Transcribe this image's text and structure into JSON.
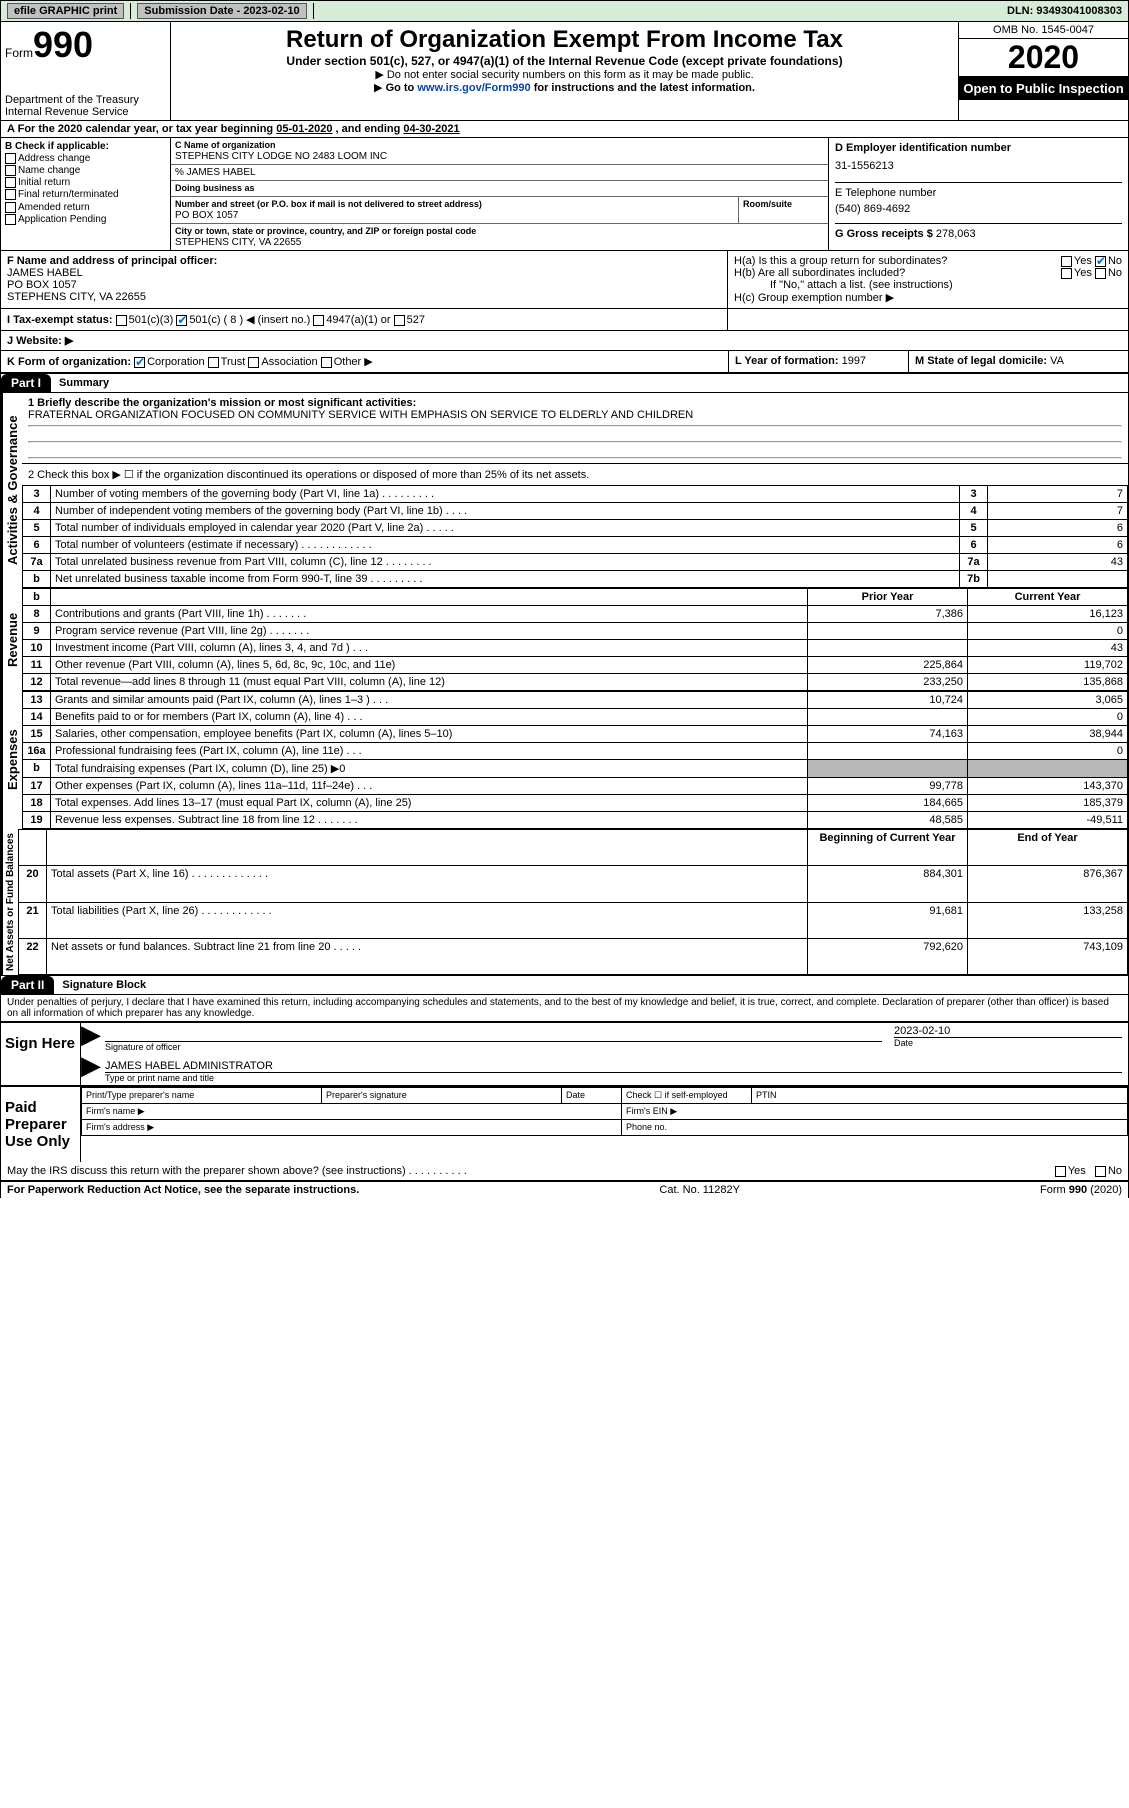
{
  "topbar": {
    "efile": "efile GRAPHIC print",
    "submission_label": "Submission Date - 2023-02-10",
    "dln": "DLN: 93493041008303"
  },
  "header": {
    "form_label": "Form",
    "form_number": "990",
    "dept1": "Department of the Treasury",
    "dept2": "Internal Revenue Service",
    "title": "Return of Organization Exempt From Income Tax",
    "subtitle": "Under section 501(c), 527, or 4947(a)(1) of the Internal Revenue Code (except private foundations)",
    "note1": "Do not enter social security numbers on this form as it may be made public.",
    "note2_pre": "Go to ",
    "note2_link": "www.irs.gov/Form990",
    "note2_post": " for instructions and the latest information.",
    "omb": "OMB No. 1545-0047",
    "year": "2020",
    "open": "Open to Public Inspection"
  },
  "period": {
    "text_pre": "For the 2020 calendar year, or tax year beginning ",
    "begin": "05-01-2020",
    "text_mid": " , and ending ",
    "end": "04-30-2021"
  },
  "secB": {
    "label": "B Check if applicable:",
    "items": [
      "Address change",
      "Name change",
      "Initial return",
      "Final return/terminated",
      "Amended return",
      "Application Pending"
    ]
  },
  "secC": {
    "name_label": "C Name of organization",
    "name": "STEPHENS CITY LODGE NO 2483 LOOM INC",
    "care_of": "% JAMES HABEL",
    "dba_label": "Doing business as",
    "street_label": "Number and street (or P.O. box if mail is not delivered to street address)",
    "room_label": "Room/suite",
    "street": "PO BOX 1057",
    "city_label": "City or town, state or province, country, and ZIP or foreign postal code",
    "city": "STEPHENS CITY, VA  22655"
  },
  "secD": {
    "label": "D Employer identification number",
    "value": "31-1556213"
  },
  "secE": {
    "label": "E Telephone number",
    "value": "(540) 869-4692"
  },
  "secG": {
    "label": "G Gross receipts $",
    "value": "278,063"
  },
  "secF": {
    "label": "F  Name and address of principal officer:",
    "name": "JAMES HABEL",
    "street": "PO BOX 1057",
    "city": "STEPHENS CITY, VA  22655"
  },
  "secH": {
    "a": "H(a)  Is this a group return for subordinates?",
    "b": "H(b)  Are all subordinates included?",
    "b_note": "If \"No,\" attach a list. (see instructions)",
    "c": "H(c)  Group exemption number ▶",
    "yes": "Yes",
    "no": "No"
  },
  "secI": {
    "label": "I    Tax-exempt status:",
    "o1": "501(c)(3)",
    "o2": "501(c) ( 8 ) ◀ (insert no.)",
    "o3": "4947(a)(1) or",
    "o4": "527"
  },
  "secJ": {
    "label": "J    Website: ▶"
  },
  "secK": {
    "label": "K Form of organization:",
    "o1": "Corporation",
    "o2": "Trust",
    "o3": "Association",
    "o4": "Other ▶"
  },
  "secL": {
    "label": "L Year of formation:",
    "value": "1997"
  },
  "secM": {
    "label": "M State of legal domicile:",
    "value": "VA"
  },
  "part1": {
    "header": "Part I",
    "title": "Summary",
    "side1": "Activities & Governance",
    "side2": "Revenue",
    "side3": "Expenses",
    "side4": "Net Assets or Fund Balances",
    "q1": "1  Briefly describe the organization's mission or most significant activities:",
    "q1a": "FRATERNAL ORGANIZATION FOCUSED ON COMMUNITY SERVICE WITH EMPHASIS ON SERVICE TO ELDERLY AND CHILDREN",
    "q2": "2    Check this box ▶ ☐  if the organization discontinued its operations or disposed of more than 25% of its net assets.",
    "lines_a": [
      {
        "n": "3",
        "t": "Number of voting members of the governing body (Part VI, line 1a)   .    .    .    .    .    .    .    .    .",
        "b": "3",
        "v": "7"
      },
      {
        "n": "4",
        "t": "Number of independent voting members of the governing body (Part VI, line 1b)    .    .    .    .",
        "b": "4",
        "v": "7"
      },
      {
        "n": "5",
        "t": "Total number of individuals employed in calendar year 2020 (Part V, line 2a)   .    .    .    .    .",
        "b": "5",
        "v": "6"
      },
      {
        "n": "6",
        "t": "Total number of volunteers (estimate if necessary)    .    .    .    .    .    .    .    .    .    .    .    .",
        "b": "6",
        "v": "6"
      },
      {
        "n": "7a",
        "t": "Total unrelated business revenue from Part VIII, column (C), line 12   .    .    .    .    .    .    .    .",
        "b": "7a",
        "v": "43"
      },
      {
        "n": "b",
        "t": "Net unrelated business taxable income from Form 990-T, line 39   .    .    .    .    .    .    .    .    .",
        "b": "7b",
        "v": ""
      }
    ],
    "col_prior": "Prior Year",
    "col_current": "Current Year",
    "lines_rev": [
      {
        "n": "8",
        "t": "Contributions and grants (Part VIII, line 1h)   .    .    .    .    .    .    .",
        "p": "7,386",
        "c": "16,123"
      },
      {
        "n": "9",
        "t": "Program service revenue (Part VIII, line 2g)   .    .    .    .    .    .    .",
        "p": "",
        "c": "0"
      },
      {
        "n": "10",
        "t": "Investment income (Part VIII, column (A), lines 3, 4, and 7d )   .    .    .",
        "p": "",
        "c": "43"
      },
      {
        "n": "11",
        "t": "Other revenue (Part VIII, column (A), lines 5, 6d, 8c, 9c, 10c, and 11e)",
        "p": "225,864",
        "c": "119,702"
      },
      {
        "n": "12",
        "t": "Total revenue—add lines 8 through 11 (must equal Part VIII, column (A), line 12)",
        "p": "233,250",
        "c": "135,868"
      }
    ],
    "lines_exp": [
      {
        "n": "13",
        "t": "Grants and similar amounts paid (Part IX, column (A), lines 1–3 )   .    .    .",
        "p": "10,724",
        "c": "3,065"
      },
      {
        "n": "14",
        "t": "Benefits paid to or for members (Part IX, column (A), line 4)   .    .    .",
        "p": "",
        "c": "0"
      },
      {
        "n": "15",
        "t": "Salaries, other compensation, employee benefits (Part IX, column (A), lines 5–10)",
        "p": "74,163",
        "c": "38,944"
      },
      {
        "n": "16a",
        "t": "Professional fundraising fees (Part IX, column (A), line 11e)   .    .    .",
        "p": "",
        "c": "0"
      },
      {
        "n": "b",
        "t": "Total fundraising expenses (Part IX, column (D), line 25) ▶0",
        "p": "GRAY",
        "c": "GRAY"
      },
      {
        "n": "17",
        "t": "Other expenses (Part IX, column (A), lines 11a–11d, 11f–24e)   .    .    .",
        "p": "99,778",
        "c": "143,370"
      },
      {
        "n": "18",
        "t": "Total expenses. Add lines 13–17 (must equal Part IX, column (A), line 25)",
        "p": "184,665",
        "c": "185,379"
      },
      {
        "n": "19",
        "t": "Revenue less expenses. Subtract line 18 from line 12   .    .    .    .    .    .    .",
        "p": "48,585",
        "c": "-49,511"
      }
    ],
    "col_begin": "Beginning of Current Year",
    "col_end": "End of Year",
    "lines_net": [
      {
        "n": "20",
        "t": "Total assets (Part X, line 16)   .    .    .    .    .    .    .    .    .    .    .    .    .",
        "p": "884,301",
        "c": "876,367"
      },
      {
        "n": "21",
        "t": "Total liabilities (Part X, line 26)   .    .    .    .    .    .    .    .    .    .    .    .",
        "p": "91,681",
        "c": "133,258"
      },
      {
        "n": "22",
        "t": "Net assets or fund balances. Subtract line 21 from line 20   .    .    .    .    .",
        "p": "792,620",
        "c": "743,109"
      }
    ]
  },
  "part2": {
    "header": "Part II",
    "title": "Signature Block",
    "decl": "Under penalties of perjury, I declare that I have examined this return, including accompanying schedules and statements, and to the best of my knowledge and belief, it is true, correct, and complete. Declaration of preparer (other than officer) is based on all information of which preparer has any knowledge.",
    "sign_here": "Sign Here",
    "sig_officer": "Signature of officer",
    "date_label": "Date",
    "date_val": "2023-02-10",
    "name_title": "JAMES HABEL  ADMINISTRATOR",
    "name_title_label": "Type or print name and title",
    "paid": "Paid Preparer Use Only",
    "pt_name": "Print/Type preparer's name",
    "pt_sig": "Preparer's signature",
    "pt_date": "Date",
    "pt_check": "Check ☐ if self-employed",
    "pt_ptin": "PTIN",
    "firm_name": "Firm's name     ▶",
    "firm_ein": "Firm's EIN ▶",
    "firm_addr": "Firm's address ▶",
    "phone": "Phone no.",
    "may": "May the IRS discuss this return with the preparer shown above? (see instructions)   .    .    .    .    .    .    .    .    .    .",
    "yes": "Yes",
    "no": "No"
  },
  "footer": {
    "left": "For Paperwork Reduction Act Notice, see the separate instructions.",
    "mid": "Cat. No. 11282Y",
    "right": "Form 990 (2020)"
  }
}
